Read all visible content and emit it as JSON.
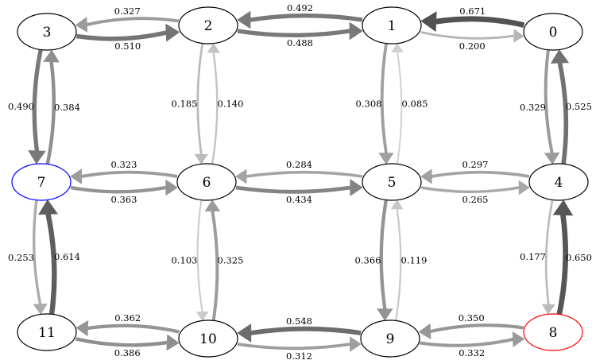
{
  "nodes": [
    {
      "id": "0",
      "label": "0",
      "outline": "#000000"
    },
    {
      "id": "1",
      "label": "1",
      "outline": "#000000"
    },
    {
      "id": "2",
      "label": "2",
      "outline": "#000000"
    },
    {
      "id": "3",
      "label": "3",
      "outline": "#000000"
    },
    {
      "id": "4",
      "label": "4",
      "outline": "#000000"
    },
    {
      "id": "5",
      "label": "5",
      "outline": "#000000"
    },
    {
      "id": "6",
      "label": "6",
      "outline": "#000000"
    },
    {
      "id": "7",
      "label": "7",
      "outline": "#0000ff"
    },
    {
      "id": "8",
      "label": "8",
      "outline": "#ff0000"
    },
    {
      "id": "9",
      "label": "9",
      "outline": "#000000"
    },
    {
      "id": "10",
      "label": "10",
      "outline": "#000000"
    },
    {
      "id": "11",
      "label": "11",
      "outline": "#000000"
    }
  ],
  "edges": [
    {
      "from": "3",
      "to": "2",
      "weight": "0.510"
    },
    {
      "from": "2",
      "to": "3",
      "weight": "0.327"
    },
    {
      "from": "2",
      "to": "1",
      "weight": "0.488"
    },
    {
      "from": "1",
      "to": "2",
      "weight": "0.492"
    },
    {
      "from": "1",
      "to": "0",
      "weight": "0.200"
    },
    {
      "from": "0",
      "to": "1",
      "weight": "0.671"
    },
    {
      "from": "7",
      "to": "3",
      "weight": "0.384"
    },
    {
      "from": "3",
      "to": "7",
      "weight": "0.490"
    },
    {
      "from": "6",
      "to": "2",
      "weight": "0.140"
    },
    {
      "from": "2",
      "to": "6",
      "weight": "0.185"
    },
    {
      "from": "5",
      "to": "1",
      "weight": "0.085"
    },
    {
      "from": "1",
      "to": "5",
      "weight": "0.308"
    },
    {
      "from": "4",
      "to": "0",
      "weight": "0.525"
    },
    {
      "from": "0",
      "to": "4",
      "weight": "0.329"
    },
    {
      "from": "7",
      "to": "6",
      "weight": "0.363"
    },
    {
      "from": "6",
      "to": "7",
      "weight": "0.323"
    },
    {
      "from": "6",
      "to": "5",
      "weight": "0.434"
    },
    {
      "from": "5",
      "to": "6",
      "weight": "0.284"
    },
    {
      "from": "5",
      "to": "4",
      "weight": "0.265"
    },
    {
      "from": "4",
      "to": "5",
      "weight": "0.297"
    },
    {
      "from": "11",
      "to": "7",
      "weight": "0.614"
    },
    {
      "from": "7",
      "to": "11",
      "weight": "0.253"
    },
    {
      "from": "10",
      "to": "6",
      "weight": "0.325"
    },
    {
      "from": "6",
      "to": "10",
      "weight": "0.103"
    },
    {
      "from": "9",
      "to": "5",
      "weight": "0.119"
    },
    {
      "from": "5",
      "to": "9",
      "weight": "0.366"
    },
    {
      "from": "8",
      "to": "4",
      "weight": "0.650"
    },
    {
      "from": "4",
      "to": "8",
      "weight": "0.177"
    },
    {
      "from": "11",
      "to": "10",
      "weight": "0.386"
    },
    {
      "from": "10",
      "to": "11",
      "weight": "0.362"
    },
    {
      "from": "10",
      "to": "9",
      "weight": "0.312"
    },
    {
      "from": "9",
      "to": "10",
      "weight": "0.548"
    },
    {
      "from": "9",
      "to": "8",
      "weight": "0.332"
    },
    {
      "from": "8",
      "to": "9",
      "weight": "0.350"
    }
  ]
}
